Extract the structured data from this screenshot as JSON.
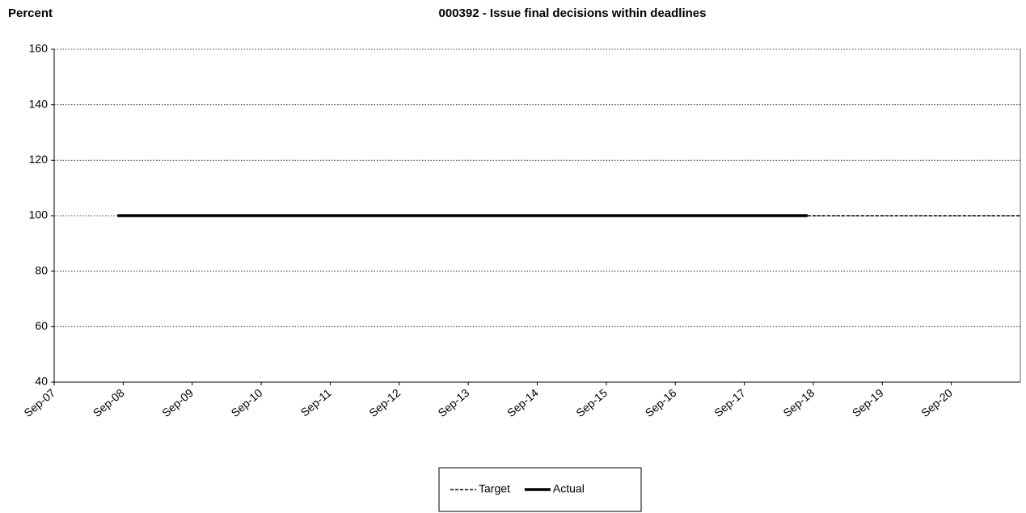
{
  "chart_data": {
    "type": "line",
    "title": "000392 - Issue final decisions within deadlines",
    "y_label": "Percent",
    "xlim": [
      "2007-09",
      "2021-09"
    ],
    "xticks": [
      {
        "value": "2007-09",
        "label": "Sep-07"
      },
      {
        "value": "2008-09",
        "label": "Sep-08"
      },
      {
        "value": "2009-09",
        "label": "Sep-09"
      },
      {
        "value": "2010-09",
        "label": "Sep-10"
      },
      {
        "value": "2011-09",
        "label": "Sep-11"
      },
      {
        "value": "2012-09",
        "label": "Sep-12"
      },
      {
        "value": "2013-09",
        "label": "Sep-13"
      },
      {
        "value": "2014-09",
        "label": "Sep-14"
      },
      {
        "value": "2015-09",
        "label": "Sep-15"
      },
      {
        "value": "2016-09",
        "label": "Sep-16"
      },
      {
        "value": "2017-09",
        "label": "Sep-17"
      },
      {
        "value": "2018-09",
        "label": "Sep-18"
      },
      {
        "value": "2019-09",
        "label": "Sep-19"
      },
      {
        "value": "2020-09",
        "label": "Sep-20"
      }
    ],
    "ylim": [
      40,
      160
    ],
    "yticks": [
      40,
      60,
      80,
      100,
      120,
      140,
      160
    ],
    "grid": true,
    "legend": "bottom",
    "series": [
      {
        "name": "Target",
        "color": "#000000",
        "dash": true,
        "x": [
          "2018-08",
          "2021-09"
        ],
        "values": [
          100,
          100
        ]
      },
      {
        "name": "Actual",
        "color": "#000000",
        "dash": false,
        "x": [
          "2008-08",
          "2018-08"
        ],
        "values": [
          100,
          100
        ]
      }
    ]
  }
}
